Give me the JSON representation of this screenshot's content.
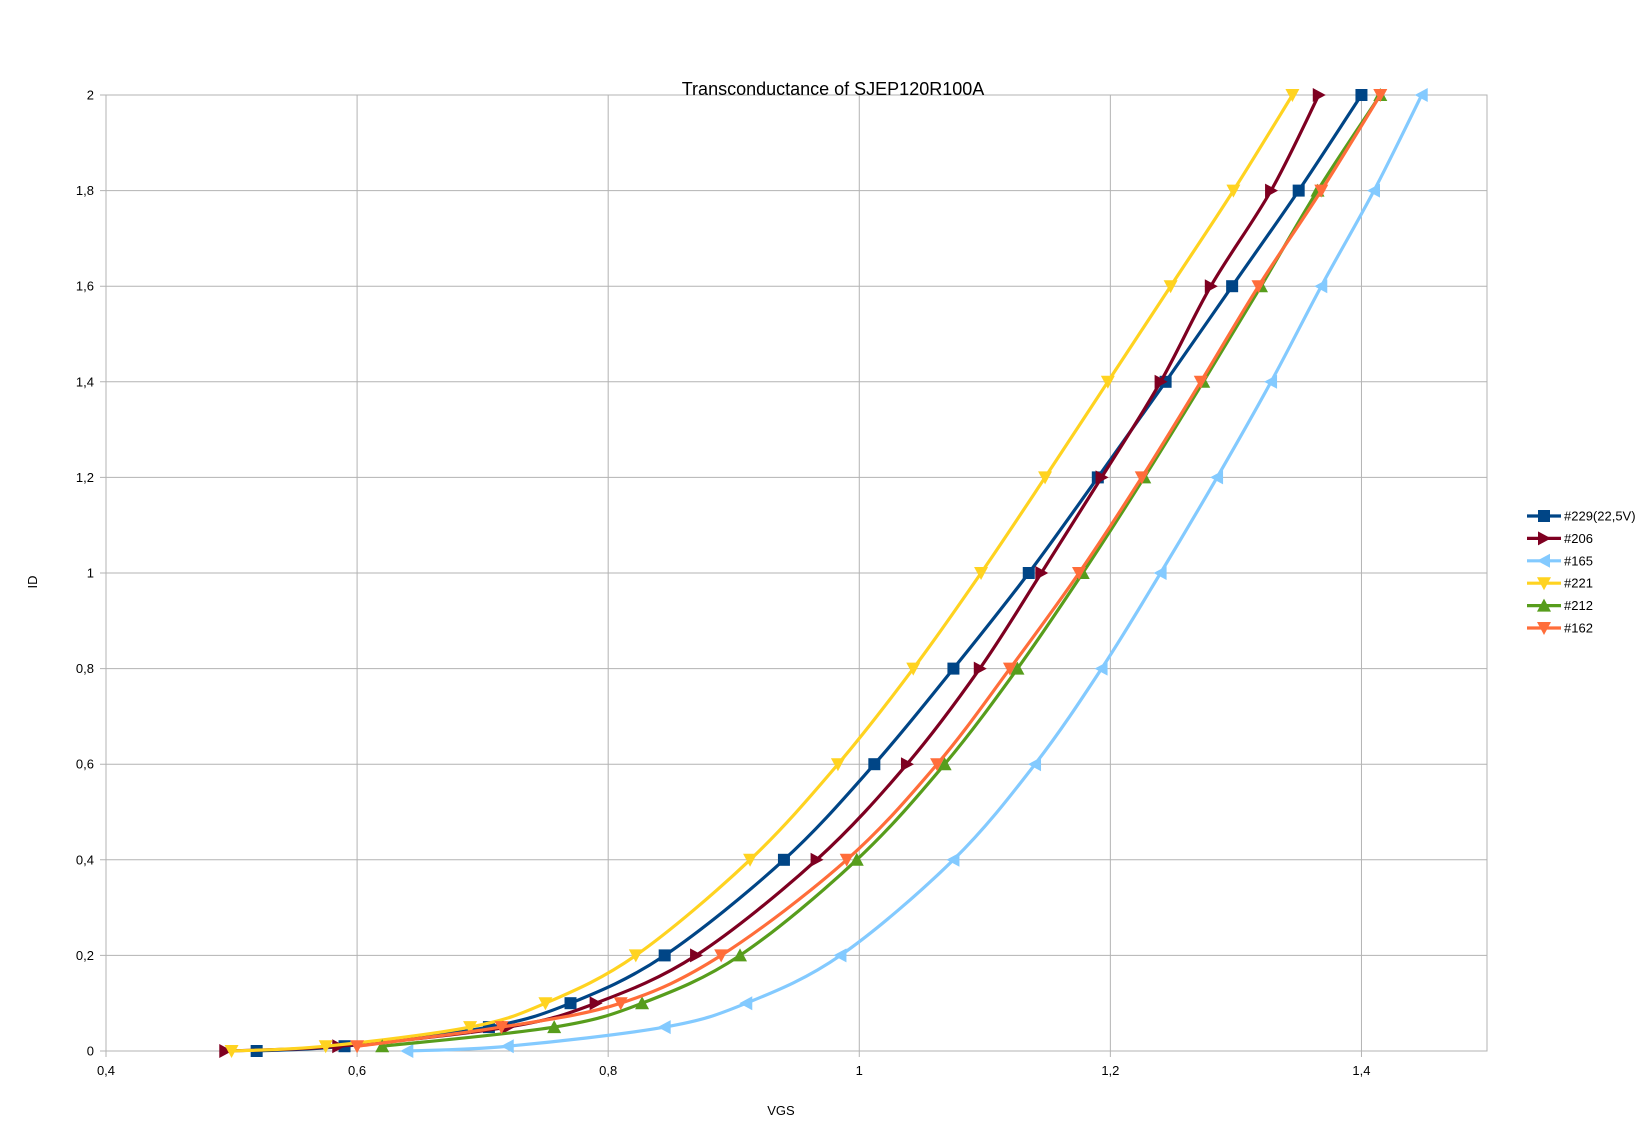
{
  "chart_data": {
    "type": "line",
    "title": "Transconductance of SJEP120R100A",
    "xlabel": "VGS",
    "ylabel": "ID",
    "xlim": [
      0.4,
      1.5
    ],
    "ylim": [
      0,
      2
    ],
    "xticks": [
      0.4,
      0.6,
      0.8,
      1.0,
      1.2,
      1.4
    ],
    "xtick_labels": [
      "0,4",
      "0,6",
      "0,8",
      "1",
      "1,2",
      "1,4"
    ],
    "yticks": [
      0,
      0.2,
      0.4,
      0.6,
      0.8,
      1.0,
      1.2,
      1.4,
      1.6,
      1.8,
      2.0
    ],
    "ytick_labels": [
      "0",
      "0,2",
      "0,4",
      "0,6",
      "0,8",
      "1",
      "1,2",
      "1,4",
      "1,6",
      "1,8",
      "2"
    ],
    "grid": true,
    "legend_position": "right",
    "series": [
      {
        "name": "#229(22,5V)",
        "color": "#004586",
        "marker": "square",
        "x": [
          0.52,
          0.59,
          0.705,
          0.77,
          0.845,
          0.94,
          1.012,
          1.075,
          1.135,
          1.19,
          1.244,
          1.297,
          1.35,
          1.4
        ],
        "y": [
          0.0,
          0.01,
          0.05,
          0.1,
          0.2,
          0.4,
          0.6,
          0.8,
          1.0,
          1.2,
          1.4,
          1.6,
          1.8,
          2.0
        ]
      },
      {
        "name": "#206",
        "color": "#7e0021",
        "marker": "triangle-right",
        "x": [
          0.495,
          0.585,
          0.72,
          0.79,
          0.87,
          0.966,
          1.038,
          1.096,
          1.145,
          1.193,
          1.24,
          1.28,
          1.328,
          1.366
        ],
        "y": [
          0.0,
          0.01,
          0.05,
          0.1,
          0.2,
          0.4,
          0.6,
          0.8,
          1.0,
          1.2,
          1.4,
          1.6,
          1.8,
          2.0
        ]
      },
      {
        "name": "#165",
        "color": "#83caff",
        "marker": "triangle-left",
        "x": [
          0.64,
          0.72,
          0.845,
          0.91,
          0.985,
          1.075,
          1.14,
          1.193,
          1.24,
          1.285,
          1.328,
          1.368,
          1.41,
          1.448
        ],
        "y": [
          0.0,
          0.01,
          0.05,
          0.1,
          0.2,
          0.4,
          0.6,
          0.8,
          1.0,
          1.2,
          1.4,
          1.6,
          1.8,
          2.0
        ]
      },
      {
        "name": "#221",
        "color": "#ffd320",
        "marker": "triangle-down",
        "x": [
          0.5,
          0.575,
          0.69,
          0.75,
          0.822,
          0.913,
          0.983,
          1.043,
          1.097,
          1.148,
          1.198,
          1.248,
          1.298,
          1.345
        ],
        "y": [
          0.0,
          0.01,
          0.05,
          0.1,
          0.2,
          0.4,
          0.6,
          0.8,
          1.0,
          1.2,
          1.4,
          1.6,
          1.8,
          2.0
        ]
      },
      {
        "name": "#212",
        "color": "#579d1c",
        "marker": "triangle-up",
        "x": [
          0.62,
          0.757,
          0.827,
          0.905,
          0.998,
          1.068,
          1.126,
          1.178,
          1.227,
          1.274,
          1.32,
          1.365,
          1.415
        ],
        "y": [
          0.01,
          0.05,
          0.1,
          0.2,
          0.4,
          0.6,
          0.8,
          1.0,
          1.2,
          1.4,
          1.6,
          1.8,
          2.0
        ]
      },
      {
        "name": "#162",
        "color": "#ff6d3a",
        "marker": "triangle-down",
        "x": [
          0.6,
          0.715,
          0.81,
          0.89,
          0.99,
          1.062,
          1.12,
          1.175,
          1.225,
          1.272,
          1.318,
          1.368,
          1.415
        ],
        "y": [
          0.01,
          0.05,
          0.1,
          0.2,
          0.4,
          0.6,
          0.8,
          1.0,
          1.2,
          1.4,
          1.6,
          1.8,
          2.0
        ]
      }
    ]
  }
}
